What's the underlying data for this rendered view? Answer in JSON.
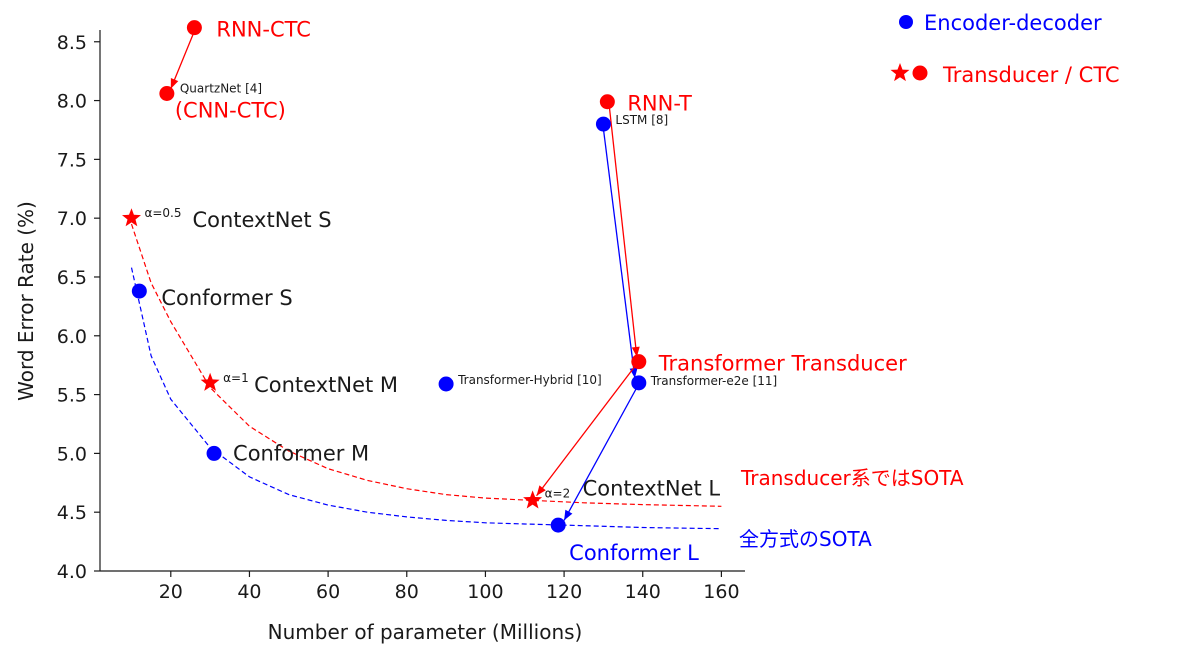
{
  "chart_data": {
    "type": "scatter",
    "xlabel": "Number of parameter (Millions)",
    "ylabel": "Word Error Rate (%)",
    "xlim": [
      2,
      166
    ],
    "ylim": [
      4.0,
      8.6
    ],
    "xticks": [
      20,
      40,
      60,
      80,
      100,
      120,
      140,
      160
    ],
    "yticks": [
      4.0,
      4.5,
      5.0,
      5.5,
      6.0,
      6.5,
      7.0,
      7.5,
      8.0,
      8.5
    ],
    "grid": false,
    "colors": {
      "red": "#ff0000",
      "blue": "#0000ff",
      "dark": "#1a1a1a"
    },
    "points": [
      {
        "name": "RNN-CTC",
        "x": 26,
        "y": 8.62,
        "marker": "circle",
        "color": "red",
        "label": "RNN-CTC",
        "label_size": "large"
      },
      {
        "name": "QuartzNet",
        "x": 19,
        "y": 8.06,
        "marker": "circle",
        "color": "red",
        "label": "QuartzNet [4]",
        "label_size": "small",
        "label2": "(CNN-CTC)"
      },
      {
        "name": "RNN-T",
        "x": 131,
        "y": 7.99,
        "marker": "circle",
        "color": "red",
        "label": "RNN-T",
        "label_size": "large"
      },
      {
        "name": "LSTM",
        "x": 130,
        "y": 7.8,
        "marker": "circle",
        "color": "blue",
        "label": "LSTM [8]",
        "label_size": "small"
      },
      {
        "name": "ContextNet S",
        "x": 10,
        "y": 7.0,
        "marker": "star",
        "color": "red",
        "alpha": "α=0.5",
        "label": "ContextNet S",
        "label_size": "large"
      },
      {
        "name": "Conformer S",
        "x": 12,
        "y": 6.38,
        "marker": "circle",
        "color": "blue",
        "label": "Conformer S",
        "label_size": "large"
      },
      {
        "name": "Transformer Transducer",
        "x": 139,
        "y": 5.78,
        "marker": "circle",
        "color": "red",
        "label": "Transformer Transducer",
        "label_size": "large"
      },
      {
        "name": "ContextNet M",
        "x": 30,
        "y": 5.6,
        "marker": "star",
        "color": "red",
        "alpha": "α=1",
        "label": "ContextNet M",
        "label_size": "large"
      },
      {
        "name": "Transformer-Hybrid",
        "x": 90,
        "y": 5.59,
        "marker": "circle",
        "color": "blue",
        "label": "Transformer-Hybrid [10]",
        "label_size": "small"
      },
      {
        "name": "Transformer-e2e",
        "x": 139,
        "y": 5.6,
        "marker": "circle",
        "color": "blue",
        "label": "Transformer-e2e [11]",
        "label_size": "small"
      },
      {
        "name": "Conformer M",
        "x": 31,
        "y": 5.0,
        "marker": "circle",
        "color": "blue",
        "label": "Conformer M",
        "label_size": "large"
      },
      {
        "name": "ContextNet L",
        "x": 112,
        "y": 4.6,
        "marker": "star",
        "color": "red",
        "alpha": "α=2",
        "label": "ContextNet L",
        "label_size": "large"
      },
      {
        "name": "Conformer L",
        "x": 118.5,
        "y": 4.39,
        "marker": "circle",
        "color": "blue",
        "label": "Conformer L",
        "label_size": "large"
      }
    ],
    "curves": [
      {
        "name": "ContextNet trend",
        "color": "red",
        "x": [
          10,
          15,
          20,
          30,
          40,
          50,
          60,
          70,
          80,
          90,
          100,
          112,
          125,
          140,
          160
        ],
        "y": [
          6.95,
          6.45,
          6.12,
          5.56,
          5.23,
          5.02,
          4.87,
          4.77,
          4.7,
          4.65,
          4.62,
          4.6,
          4.58,
          4.565,
          4.55
        ]
      },
      {
        "name": "Conformer trend",
        "color": "blue",
        "x": [
          10,
          15,
          20,
          30,
          40,
          50,
          60,
          70,
          80,
          90,
          100,
          110,
          120,
          140,
          160
        ],
        "y": [
          6.58,
          5.83,
          5.46,
          5.05,
          4.8,
          4.65,
          4.56,
          4.5,
          4.46,
          4.43,
          4.41,
          4.4,
          4.39,
          4.37,
          4.36
        ]
      }
    ],
    "arrows": [
      {
        "name": "RNN-CTC to QuartzNet",
        "color": "red",
        "from": [
          26,
          8.59
        ],
        "to": [
          20,
          8.1
        ]
      },
      {
        "name": "LSTM to Transformer-e2e",
        "color": "blue",
        "from": [
          130,
          7.76
        ],
        "to": [
          138,
          5.64
        ]
      },
      {
        "name": "RNN-T to Transformer Transducer",
        "color": "red",
        "from": [
          131.5,
          7.95
        ],
        "to": [
          138.5,
          5.82
        ]
      },
      {
        "name": "Transformer Transducer to ContextNet L",
        "color": "red",
        "from": [
          138,
          5.74
        ],
        "to": [
          113,
          4.64
        ]
      },
      {
        "name": "Transformer-e2e to Conformer L",
        "color": "blue",
        "from": [
          138.5,
          5.56
        ],
        "to": [
          120,
          4.43
        ]
      }
    ],
    "legend": {
      "placement": "top-right",
      "entries": [
        {
          "markers": [
            "circle"
          ],
          "color": "blue",
          "label": "Encoder-decoder"
        },
        {
          "markers": [
            "star",
            "circle"
          ],
          "color": "red",
          "label": "Transducer / CTC"
        }
      ]
    },
    "annotations": [
      {
        "text": "Transducer系ではSOTA",
        "color": "red"
      },
      {
        "text": "全方式のSOTA",
        "color": "blue"
      }
    ]
  }
}
